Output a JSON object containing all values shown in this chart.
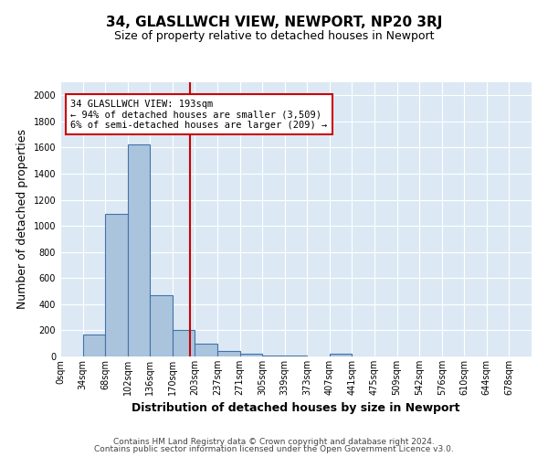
{
  "title": "34, GLASLLWCH VIEW, NEWPORT, NP20 3RJ",
  "subtitle": "Size of property relative to detached houses in Newport",
  "xlabel": "Distribution of detached houses by size in Newport",
  "ylabel": "Number of detached properties",
  "bar_labels": [
    "0sqm",
    "34sqm",
    "68sqm",
    "102sqm",
    "136sqm",
    "170sqm",
    "203sqm",
    "237sqm",
    "271sqm",
    "305sqm",
    "339sqm",
    "373sqm",
    "407sqm",
    "441sqm",
    "475sqm",
    "509sqm",
    "542sqm",
    "576sqm",
    "610sqm",
    "644sqm",
    "678sqm"
  ],
  "bar_values": [
    0,
    170,
    1090,
    1625,
    470,
    200,
    100,
    42,
    20,
    8,
    8,
    0,
    18,
    0,
    0,
    0,
    0,
    0,
    0,
    0,
    0
  ],
  "bar_color": "#aac4de",
  "bar_edge_color": "#4472a8",
  "vline_x": 5.78,
  "vline_color": "#cc0000",
  "annotation_text": "34 GLASLLWCH VIEW: 193sqm\n← 94% of detached houses are smaller (3,509)\n6% of semi-detached houses are larger (209) →",
  "annotation_box_edge": "#cc0000",
  "annotation_box_face": "#ffffff",
  "ylim": [
    0,
    2100
  ],
  "yticks": [
    0,
    200,
    400,
    600,
    800,
    1000,
    1200,
    1400,
    1600,
    1800,
    2000
  ],
  "bg_color": "#dce9f5",
  "footer1": "Contains HM Land Registry data © Crown copyright and database right 2024.",
  "footer2": "Contains public sector information licensed under the Open Government Licence v3.0.",
  "title_fontsize": 11,
  "subtitle_fontsize": 9,
  "axis_label_fontsize": 9,
  "tick_fontsize": 7,
  "annotation_fontsize": 7.5,
  "footer_fontsize": 6.5
}
